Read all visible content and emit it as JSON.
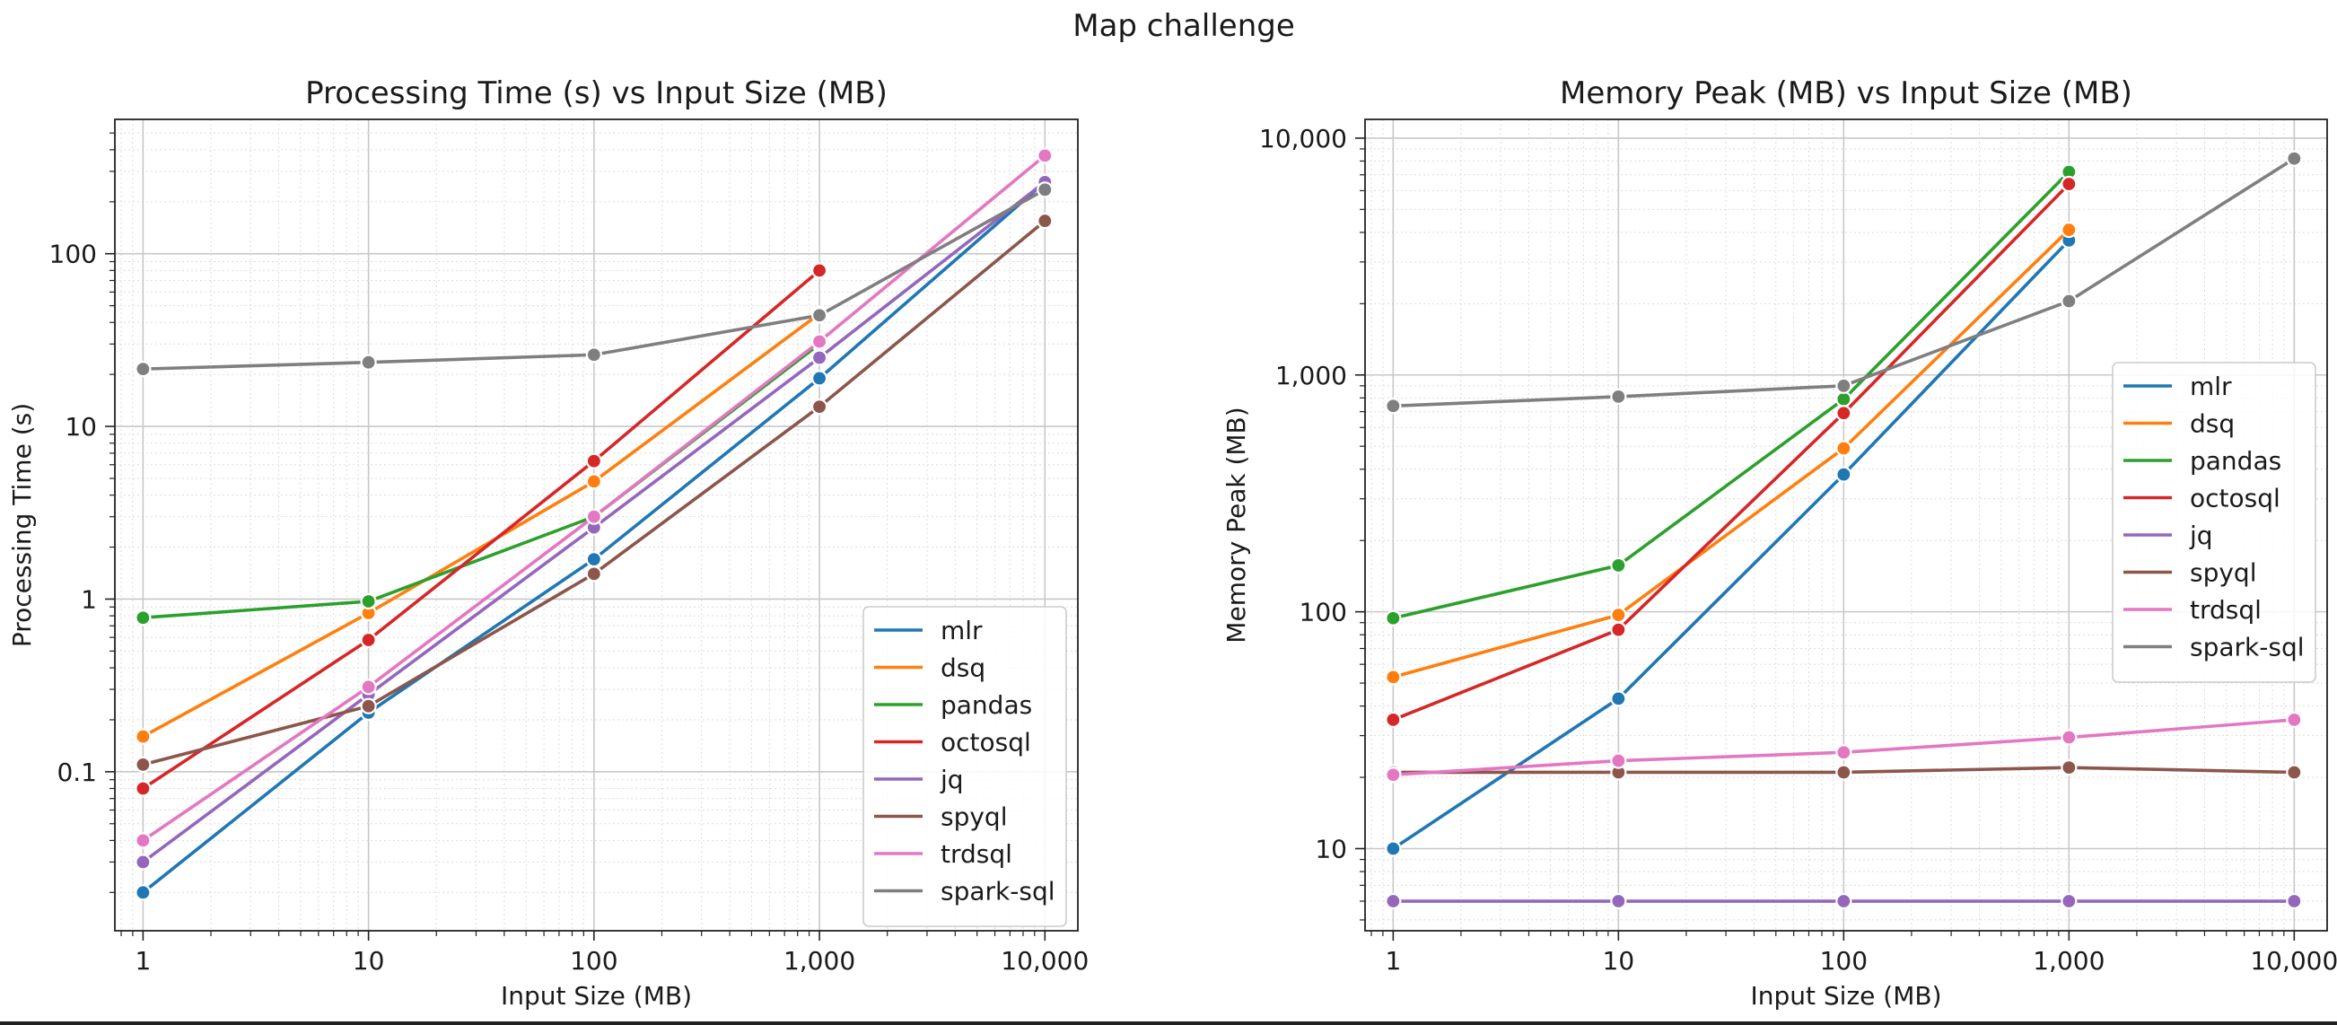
{
  "figure": {
    "suptitle": "Map challenge"
  },
  "colors": {
    "mlr": "#1f77b4",
    "dsq": "#ff7f0e",
    "pandas": "#2ca02c",
    "octosql": "#d62728",
    "jq": "#9467bd",
    "spyql": "#8c564b",
    "trdsql": "#e377c2",
    "spark-sql": "#7f7f7f"
  },
  "chart_data": [
    {
      "type": "line",
      "title": "Processing Time (s) vs Input Size (MB)",
      "xlabel": "Input Size (MB)",
      "ylabel": "Processing Time (s)",
      "xscale": "log",
      "yscale": "log",
      "xlim": [
        0.75,
        14000
      ],
      "ylim": [
        0.012,
        600
      ],
      "xticks": [
        1,
        10,
        100,
        1000,
        10000
      ],
      "xticklabels": [
        "1",
        "10",
        "100",
        "1,000",
        "10,000"
      ],
      "yticks": [
        0.1,
        1,
        10,
        100
      ],
      "yticklabels": [
        "0.1",
        "1",
        "10",
        "100"
      ],
      "grid": true,
      "legend": "lower-right",
      "x": [
        1,
        10,
        100,
        1000,
        10000
      ],
      "series": [
        {
          "name": "mlr",
          "values": [
            0.02,
            0.22,
            1.7,
            19,
            260
          ]
        },
        {
          "name": "dsq",
          "values": [
            0.16,
            0.83,
            4.8,
            45,
            null
          ]
        },
        {
          "name": "pandas",
          "values": [
            0.78,
            0.97,
            3.0,
            30,
            null
          ]
        },
        {
          "name": "octosql",
          "values": [
            0.08,
            0.58,
            6.3,
            80,
            null
          ]
        },
        {
          "name": "jq",
          "values": [
            0.03,
            0.28,
            2.6,
            25,
            260
          ]
        },
        {
          "name": "spyql",
          "values": [
            0.11,
            0.24,
            1.4,
            13,
            155
          ]
        },
        {
          "name": "trdsql",
          "values": [
            0.04,
            0.31,
            3.0,
            31,
            370
          ]
        },
        {
          "name": "spark-sql",
          "values": [
            21.5,
            23.5,
            26,
            44,
            235
          ]
        }
      ]
    },
    {
      "type": "line",
      "title": "Memory Peak (MB) vs Input Size (MB)",
      "xlabel": "Input Size (MB)",
      "ylabel": "Memory Peak (MB)",
      "xscale": "log",
      "yscale": "log",
      "xlim": [
        0.75,
        14000
      ],
      "ylim": [
        4.5,
        12000
      ],
      "xticks": [
        1,
        10,
        100,
        1000,
        10000
      ],
      "xticklabels": [
        "1",
        "10",
        "100",
        "1,000",
        "10,000"
      ],
      "yticks": [
        10,
        100,
        1000,
        10000
      ],
      "yticklabels": [
        "10",
        "100",
        "1,000",
        "10,000"
      ],
      "grid": true,
      "legend": "center-right",
      "x": [
        1,
        10,
        100,
        1000,
        10000
      ],
      "series": [
        {
          "name": "mlr",
          "values": [
            10,
            43,
            380,
            3700,
            null
          ]
        },
        {
          "name": "dsq",
          "values": [
            53,
            97,
            490,
            4100,
            null
          ]
        },
        {
          "name": "pandas",
          "values": [
            94,
            157,
            790,
            7200,
            null
          ]
        },
        {
          "name": "octosql",
          "values": [
            35,
            84,
            690,
            6400,
            null
          ]
        },
        {
          "name": "jq",
          "values": [
            6,
            6,
            6,
            6,
            6
          ]
        },
        {
          "name": "spyql",
          "values": [
            21,
            21,
            21,
            22,
            21
          ]
        },
        {
          "name": "trdsql",
          "values": [
            20.5,
            23.5,
            25.5,
            29.5,
            35
          ]
        },
        {
          "name": "spark-sql",
          "values": [
            740,
            810,
            900,
            2050,
            8200
          ]
        }
      ]
    }
  ]
}
